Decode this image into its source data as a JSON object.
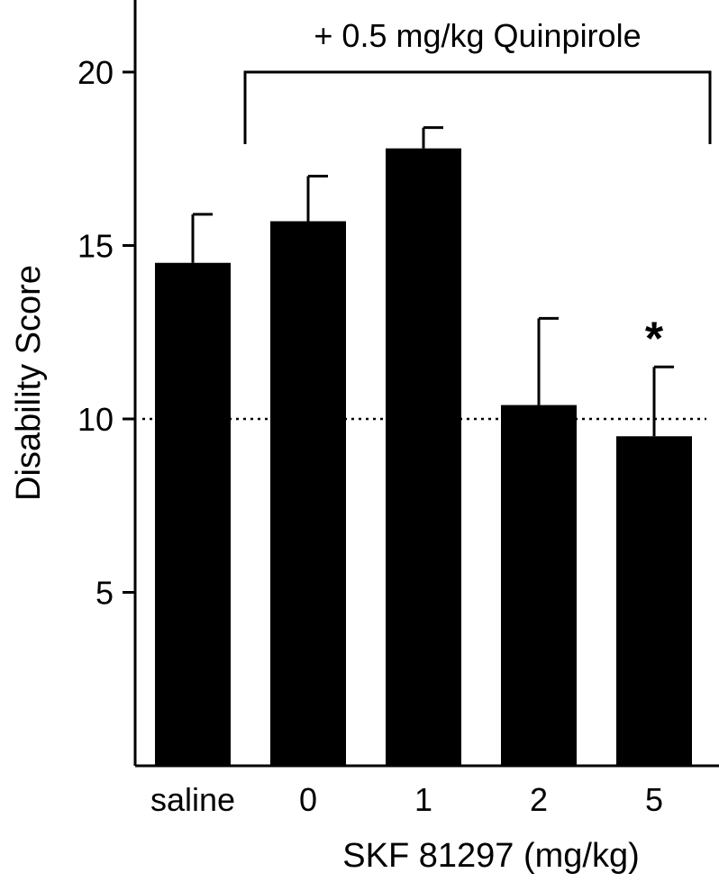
{
  "chart_data": {
    "type": "bar",
    "title": "",
    "xlabel": "SKF 81297 (mg/kg)",
    "ylabel": "Disability Score",
    "ylim": [
      0,
      22
    ],
    "yticks": [
      "5",
      "10",
      "15",
      "20"
    ],
    "categories": [
      "saline",
      "0",
      "1",
      "2",
      "5"
    ],
    "values": [
      14.5,
      15.7,
      17.8,
      10.4,
      9.5
    ],
    "errors": [
      1.4,
      1.3,
      0.6,
      2.5,
      2.0
    ],
    "significance": [
      "",
      "",
      "",
      "",
      "*"
    ],
    "reference_line": {
      "value": 10,
      "style": "dotted"
    },
    "bracket": {
      "label": "+ 0.5 mg/kg Quinpirole",
      "from_category": "0",
      "to_category": "5"
    },
    "grid": false,
    "bar_color": "#000000"
  }
}
